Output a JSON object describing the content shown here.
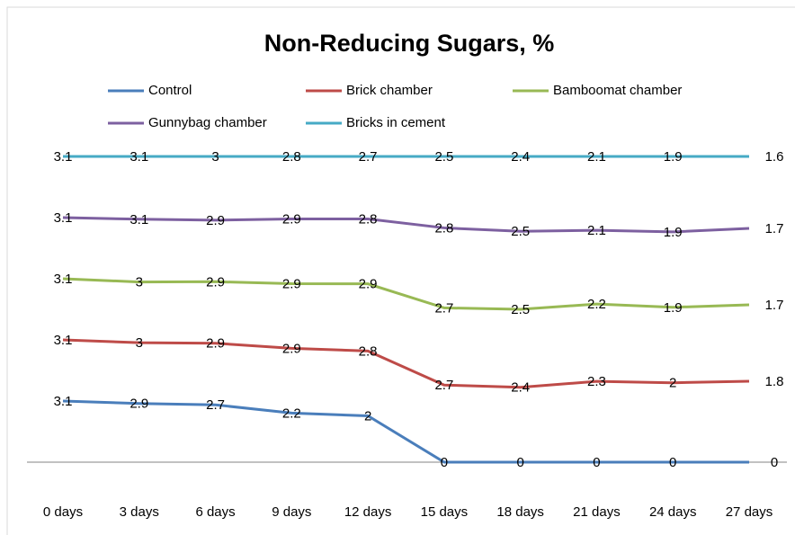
{
  "chart_data": {
    "type": "line",
    "stacked": "percent",
    "title": "Non-Reducing Sugars, %",
    "categories": [
      "0 days",
      "3 days",
      "6 days",
      "9 days",
      "12 days",
      "15 days",
      "18 days",
      "21 days",
      "24 days",
      "27 days"
    ],
    "series": [
      {
        "name": "Control",
        "color": "#4a7ebb",
        "values": [
          3.1,
          2.9,
          2.7,
          2.2,
          2,
          0,
          0,
          0,
          0,
          0
        ]
      },
      {
        "name": "Brick chamber",
        "color": "#be4b48",
        "values": [
          3.1,
          3,
          2.9,
          2.9,
          2.8,
          2.7,
          2.4,
          2.3,
          2,
          1.8
        ]
      },
      {
        "name": "Bamboomat chamber",
        "color": "#98b954",
        "values": [
          3.1,
          3,
          2.9,
          2.9,
          2.9,
          2.7,
          2.5,
          2.2,
          1.9,
          1.7
        ]
      },
      {
        "name": "Gunnybag chamber",
        "color": "#7d60a0",
        "values": [
          3.1,
          3.1,
          2.9,
          2.9,
          2.8,
          2.8,
          2.5,
          2.1,
          1.9,
          1.7
        ]
      },
      {
        "name": "Bricks in cement",
        "color": "#46aac5",
        "values": [
          3.1,
          3.1,
          3,
          2.8,
          2.7,
          2.5,
          2.4,
          2.1,
          1.9,
          1.6
        ]
      }
    ],
    "legend": "top",
    "grid": false
  }
}
